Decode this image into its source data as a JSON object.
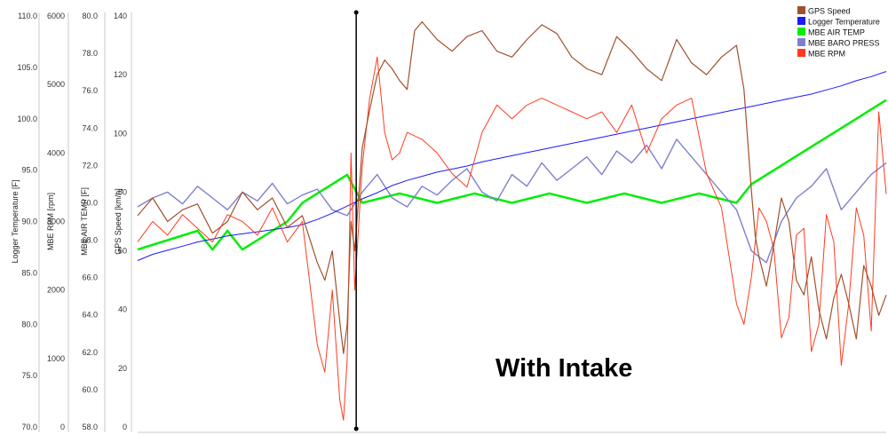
{
  "chart_data": {
    "type": "line",
    "annotation": "With Intake",
    "grid": false,
    "legend_position": "top-right",
    "axes": [
      {
        "label": "Logger Temperature [F]",
        "min": 70,
        "max": 110,
        "ticks": [
          "110.0",
          "105.0",
          "100.0",
          "95.0",
          "90.0",
          "85.0",
          "80.0",
          "75.0",
          "70.0"
        ]
      },
      {
        "label": "MBE RPM [rpm]",
        "min": 0,
        "max": 6000,
        "ticks": [
          "6000",
          "5000",
          "4000",
          "3000",
          "2000",
          "1000",
          "0"
        ]
      },
      {
        "label": "MBE AIR TEMP [F]",
        "min": 58,
        "max": 80,
        "ticks": [
          "80.0",
          "78.0",
          "76.0",
          "74.0",
          "72.0",
          "70.0",
          "68.0",
          "66.0",
          "64.0",
          "62.0",
          "60.0",
          "58.0"
        ]
      },
      {
        "label": "GPS Speed [km/h]",
        "min": 0,
        "max": 140,
        "ticks": [
          "140",
          "120",
          "100",
          "80",
          "60",
          "40",
          "20",
          "0"
        ]
      }
    ],
    "x_range": [
      0,
      100
    ],
    "cursor_x": 29.2,
    "series": [
      {
        "name": "GPS Speed",
        "color": "#a0522d",
        "x": [
          0,
          2,
          4,
          6,
          8,
          10,
          12,
          14,
          16,
          18,
          20,
          22,
          24,
          25,
          26,
          27,
          27.5,
          28,
          28.5,
          29,
          30,
          31,
          32,
          33,
          34,
          35,
          36,
          37,
          38,
          40,
          42,
          44,
          46,
          48,
          50,
          52,
          54,
          56,
          58,
          60,
          62,
          64,
          66,
          68,
          70,
          72,
          74,
          76,
          78,
          80,
          81,
          82,
          82.5,
          83,
          84,
          85,
          86,
          87,
          88,
          89,
          90,
          91,
          92,
          93,
          94,
          95,
          96,
          97,
          98,
          99,
          100
        ],
        "y": [
          72,
          78,
          70,
          74,
          76,
          66,
          70,
          80,
          74,
          78,
          68,
          72,
          56,
          50,
          60,
          36,
          25,
          35,
          70,
          60,
          95,
          108,
          120,
          125,
          122,
          118,
          115,
          135,
          138,
          132,
          128,
          133,
          135,
          128,
          126,
          132,
          137,
          134,
          126,
          122,
          120,
          133,
          128,
          122,
          118,
          132,
          124,
          120,
          126,
          130,
          115,
          80,
          65,
          58,
          48,
          62,
          78,
          70,
          50,
          45,
          58,
          40,
          30,
          44,
          52,
          42,
          30,
          55,
          48,
          38,
          45
        ]
      },
      {
        "name": "Logger Temperature",
        "color": "#1a1aff",
        "x": [
          0,
          2,
          4,
          6,
          8,
          10,
          12,
          14,
          16,
          18,
          20,
          22,
          24,
          26,
          28,
          30,
          32,
          34,
          36,
          38,
          40,
          42,
          44,
          46,
          48,
          50,
          52,
          54,
          56,
          58,
          60,
          62,
          64,
          66,
          68,
          70,
          72,
          74,
          76,
          78,
          80,
          82,
          84,
          86,
          88,
          90,
          92,
          94,
          96,
          98,
          100
        ],
        "y": [
          86.2,
          86.8,
          87.2,
          87.6,
          88.0,
          88.3,
          88.6,
          88.8,
          89.0,
          89.2,
          89.4,
          89.7,
          90.2,
          90.8,
          91.5,
          92.2,
          92.8,
          93.5,
          94.0,
          94.4,
          94.8,
          95.1,
          95.4,
          95.8,
          96.1,
          96.4,
          96.7,
          97.0,
          97.3,
          97.6,
          97.9,
          98.2,
          98.5,
          98.8,
          99.1,
          99.4,
          99.7,
          100.0,
          100.3,
          100.6,
          100.9,
          101.2,
          101.5,
          101.8,
          102.1,
          102.4,
          102.8,
          103.2,
          103.7,
          104.1,
          104.6
        ]
      },
      {
        "name": "MBE AIR TEMP",
        "color": "#00ee00",
        "x": [
          0,
          8,
          10,
          12,
          14,
          16,
          20,
          22,
          24,
          26,
          28,
          30,
          35,
          40,
          45,
          50,
          55,
          60,
          65,
          70,
          75,
          80,
          82,
          84,
          86,
          88,
          90,
          92,
          94,
          96,
          98,
          100
        ],
        "y": [
          67.5,
          68.5,
          67.5,
          68.5,
          67.5,
          68.0,
          69.0,
          70.0,
          70.5,
          71.0,
          71.5,
          70.0,
          70.5,
          70.0,
          70.5,
          70.0,
          70.5,
          70.0,
          70.5,
          70.0,
          70.5,
          70.0,
          71.0,
          71.5,
          72.0,
          72.5,
          73.0,
          73.5,
          74.0,
          74.5,
          75.0,
          75.5
        ]
      },
      {
        "name": "MBE BARO PRESS",
        "color": "#7f7fcf",
        "x": [
          0,
          2,
          4,
          6,
          8,
          10,
          12,
          14,
          16,
          18,
          20,
          22,
          24,
          26,
          28,
          30,
          32,
          34,
          36,
          38,
          40,
          42,
          44,
          46,
          48,
          50,
          52,
          54,
          56,
          58,
          60,
          62,
          64,
          66,
          68,
          70,
          72,
          74,
          76,
          78,
          80,
          82,
          84,
          86,
          88,
          90,
          92,
          94,
          96,
          98,
          100
        ],
        "y": [
          75,
          78,
          80,
          76,
          82,
          78,
          74,
          80,
          77,
          83,
          76,
          79,
          81,
          74,
          72,
          80,
          86,
          78,
          75,
          82,
          79,
          84,
          88,
          80,
          77,
          86,
          82,
          90,
          84,
          88,
          92,
          86,
          94,
          90,
          96,
          88,
          98,
          92,
          86,
          80,
          74,
          60,
          56,
          70,
          78,
          82,
          88,
          74,
          80,
          86,
          90
        ]
      },
      {
        "name": "MBE RPM",
        "color": "#ff3b1f",
        "x": [
          0,
          2,
          4,
          6,
          8,
          10,
          12,
          14,
          16,
          18,
          20,
          22,
          24,
          25,
          26,
          27,
          27.5,
          28,
          28.5,
          29,
          30,
          31,
          32,
          33,
          34,
          35,
          36,
          38,
          40,
          42,
          44,
          46,
          48,
          50,
          52,
          54,
          56,
          58,
          60,
          62,
          64,
          66,
          68,
          70,
          72,
          74,
          76,
          78,
          80,
          81,
          82,
          83,
          84,
          85,
          86,
          87,
          88,
          89,
          90,
          91,
          92,
          93,
          94,
          95,
          96,
          97,
          98,
          99,
          100
        ],
        "y": [
          2700,
          3000,
          2800,
          3100,
          2900,
          2700,
          3100,
          3000,
          2800,
          3200,
          2700,
          3000,
          1200,
          800,
          2000,
          400,
          100,
          1000,
          4000,
          2000,
          3800,
          4800,
          5400,
          4300,
          3900,
          4000,
          4300,
          4200,
          4000,
          3700,
          3500,
          4300,
          4700,
          4500,
          4700,
          4800,
          4700,
          4600,
          4500,
          4600,
          4300,
          4700,
          4000,
          4500,
          4700,
          4800,
          3700,
          3200,
          1800,
          1500,
          2200,
          3200,
          3000,
          2600,
          1300,
          1600,
          2800,
          2900,
          1100,
          1500,
          3100,
          2700,
          900,
          1800,
          3200,
          2800,
          1400,
          4600,
          3400
        ]
      }
    ]
  }
}
